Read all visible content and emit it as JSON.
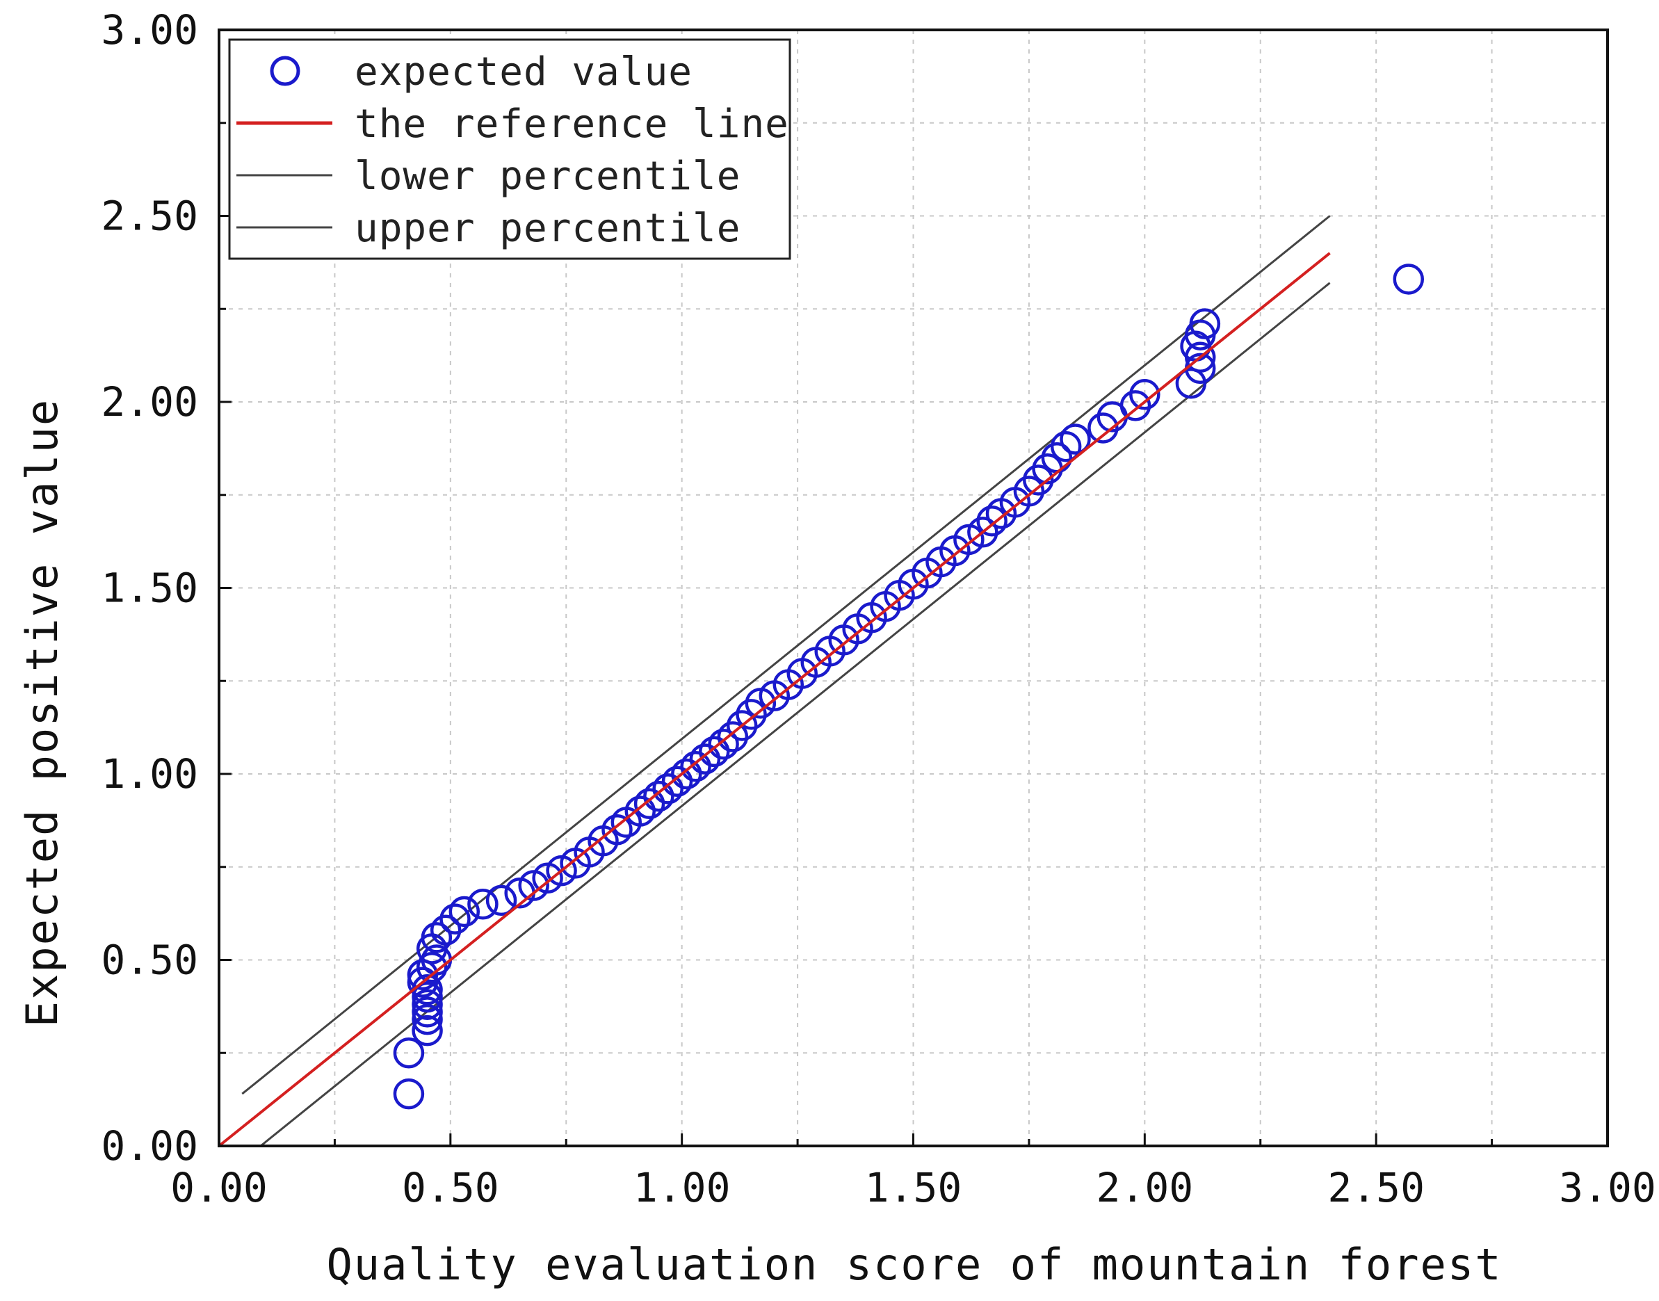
{
  "chart_data": {
    "type": "scatter",
    "title": "",
    "xlabel": "Quality evaluation score of mountain forest",
    "ylabel": "Expected positive value",
    "xlim": [
      0,
      3
    ],
    "ylim": [
      0,
      3
    ],
    "grid": true,
    "x_tick_labels": [
      "0.00",
      "0.50",
      "1.00",
      "1.50",
      "2.00",
      "2.50",
      "3.00"
    ],
    "y_tick_labels": [
      "0.00",
      "0.50",
      "1.00",
      "1.50",
      "2.00",
      "2.50",
      "3.00"
    ],
    "legend": {
      "placement": "top-left",
      "entries": [
        {
          "label": "expected value",
          "symbol": "circle",
          "color": "#1a1acc"
        },
        {
          "label": "the reference line",
          "symbol": "line",
          "color": "#d42020"
        },
        {
          "label": "lower percentile",
          "symbol": "line",
          "color": "#444444"
        },
        {
          "label": "upper percentile",
          "symbol": "line",
          "color": "#444444"
        }
      ]
    },
    "reference_line": {
      "x": [
        0.0,
        2.4
      ],
      "y": [
        0.0,
        2.4
      ],
      "color": "#d42020"
    },
    "lower_percentile": {
      "x": [
        0.09,
        2.4
      ],
      "y": [
        0.0,
        2.32
      ],
      "color": "#444444"
    },
    "upper_percentile": {
      "x": [
        0.05,
        2.4
      ],
      "y": [
        0.14,
        2.5
      ],
      "color": "#444444"
    },
    "series": [
      {
        "name": "expected value",
        "color": "#1a1acc",
        "points": [
          [
            0.41,
            0.14
          ],
          [
            0.41,
            0.25
          ],
          [
            0.45,
            0.31
          ],
          [
            0.45,
            0.34
          ],
          [
            0.45,
            0.36
          ],
          [
            0.45,
            0.38
          ],
          [
            0.45,
            0.4
          ],
          [
            0.45,
            0.42
          ],
          [
            0.44,
            0.44
          ],
          [
            0.44,
            0.46
          ],
          [
            0.46,
            0.48
          ],
          [
            0.47,
            0.5
          ],
          [
            0.46,
            0.53
          ],
          [
            0.47,
            0.56
          ],
          [
            0.49,
            0.58
          ],
          [
            0.51,
            0.61
          ],
          [
            0.53,
            0.63
          ],
          [
            0.57,
            0.65
          ],
          [
            0.61,
            0.66
          ],
          [
            0.65,
            0.68
          ],
          [
            0.68,
            0.7
          ],
          [
            0.71,
            0.72
          ],
          [
            0.74,
            0.74
          ],
          [
            0.77,
            0.76
          ],
          [
            0.8,
            0.79
          ],
          [
            0.83,
            0.82
          ],
          [
            0.86,
            0.85
          ],
          [
            0.88,
            0.87
          ],
          [
            0.91,
            0.9
          ],
          [
            0.93,
            0.92
          ],
          [
            0.95,
            0.94
          ],
          [
            0.97,
            0.96
          ],
          [
            0.99,
            0.98
          ],
          [
            1.01,
            1.0
          ],
          [
            1.03,
            1.02
          ],
          [
            1.05,
            1.04
          ],
          [
            1.07,
            1.06
          ],
          [
            1.09,
            1.08
          ],
          [
            1.11,
            1.1
          ],
          [
            1.13,
            1.13
          ],
          [
            1.15,
            1.16
          ],
          [
            1.17,
            1.19
          ],
          [
            1.2,
            1.21
          ],
          [
            1.23,
            1.24
          ],
          [
            1.26,
            1.27
          ],
          [
            1.29,
            1.3
          ],
          [
            1.32,
            1.33
          ],
          [
            1.35,
            1.36
          ],
          [
            1.38,
            1.39
          ],
          [
            1.41,
            1.42
          ],
          [
            1.44,
            1.45
          ],
          [
            1.47,
            1.48
          ],
          [
            1.5,
            1.51
          ],
          [
            1.53,
            1.54
          ],
          [
            1.56,
            1.57
          ],
          [
            1.59,
            1.6
          ],
          [
            1.62,
            1.63
          ],
          [
            1.65,
            1.65
          ],
          [
            1.67,
            1.68
          ],
          [
            1.69,
            1.7
          ],
          [
            1.72,
            1.73
          ],
          [
            1.75,
            1.76
          ],
          [
            1.77,
            1.79
          ],
          [
            1.79,
            1.82
          ],
          [
            1.81,
            1.85
          ],
          [
            1.83,
            1.88
          ],
          [
            1.85,
            1.9
          ],
          [
            1.91,
            1.93
          ],
          [
            1.93,
            1.96
          ],
          [
            1.98,
            1.99
          ],
          [
            2.0,
            2.02
          ],
          [
            2.1,
            2.05
          ],
          [
            2.12,
            2.09
          ],
          [
            2.12,
            2.12
          ],
          [
            2.11,
            2.15
          ],
          [
            2.12,
            2.18
          ],
          [
            2.13,
            2.21
          ],
          [
            2.57,
            2.33
          ]
        ]
      }
    ]
  }
}
